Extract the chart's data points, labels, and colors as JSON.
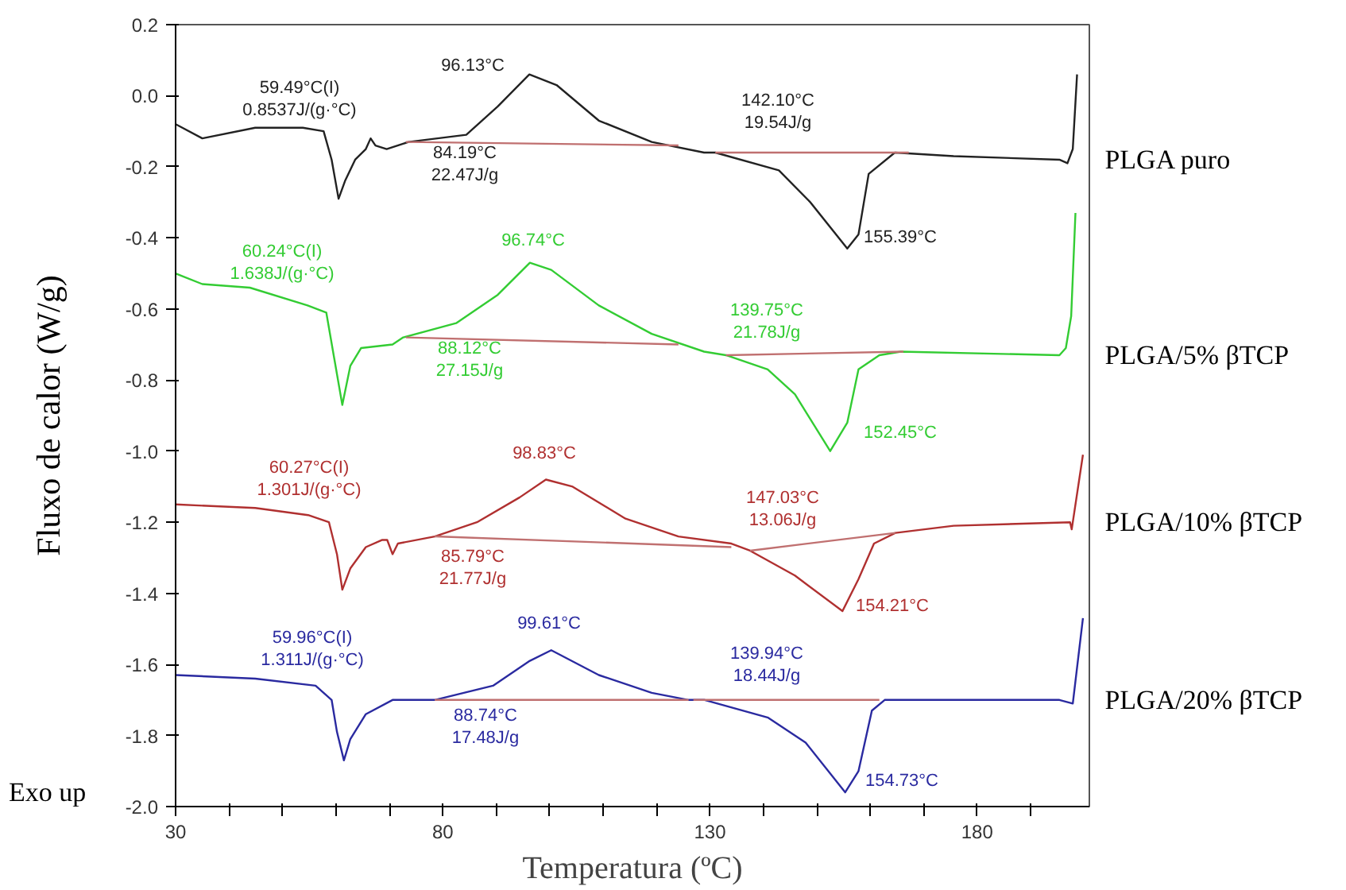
{
  "chart_data": {
    "type": "line",
    "xlabel": "Temperatura (ºC)",
    "ylabel": "Fluxo de calor (W/g)",
    "xlim": [
      30,
      201
    ],
    "ylim": [
      -2.0,
      0.2
    ],
    "xticks": [
      30,
      {
        "value": 40,
        "label": null
      },
      {
        "value": 50,
        "label": null
      },
      {
        "value": 60,
        "label": null
      },
      {
        "value": 70,
        "label": null
      },
      80,
      {
        "value": 90,
        "label": null
      },
      {
        "value": 100,
        "label": null
      },
      {
        "value": 110,
        "label": null
      },
      {
        "value": 120,
        "label": null
      },
      130,
      {
        "value": 140,
        "label": null
      },
      {
        "value": 150,
        "label": null
      },
      {
        "value": 160,
        "label": null
      },
      {
        "value": 170,
        "label": null
      },
      180,
      {
        "value": 190,
        "label": null
      }
    ],
    "yticks": [
      0.2,
      {
        "value": 0,
        "label": "0.0"
      },
      -0.2,
      -0.4,
      -0.6,
      -0.8,
      {
        "value": -1,
        "label": "-1.0"
      },
      -1.2,
      -1.4,
      -1.6,
      -1.8,
      {
        "value": -2,
        "label": "-2.0"
      }
    ],
    "grid": false,
    "series": [
      {
        "name": "PLGA puro",
        "color": "#222222",
        "x": [
          30,
          35,
          44.9,
          53.8,
          57.7,
          59.2,
          60.5,
          61.7,
          63.6,
          65.6,
          66.5,
          67.4,
          69.5,
          73.6,
          84.4,
          90.3,
          96.2,
          101.3,
          109.2,
          119.1,
          128.9,
          131,
          142.9,
          148.8,
          155.7,
          157.8,
          159.7,
          164.6,
          175.6,
          195.4,
          196.9,
          197.9,
          198.7
        ],
        "values": [
          -0.08,
          -0.12,
          -0.09,
          -0.09,
          -0.1,
          -0.18,
          -0.29,
          -0.24,
          -0.18,
          -0.15,
          -0.12,
          -0.14,
          -0.15,
          -0.13,
          -0.11,
          -0.03,
          0.06,
          0.03,
          -0.07,
          -0.13,
          -0.16,
          -0.16,
          -0.21,
          -0.3,
          -0.43,
          -0.39,
          -0.22,
          -0.16,
          -0.17,
          -0.18,
          -0.19,
          -0.15,
          0.06
        ]
      },
      {
        "name": "PLGA/5% βTCP",
        "color": "#33cc33",
        "x": [
          30,
          35,
          43.9,
          54.7,
          58.2,
          59.7,
          61.2,
          62.7,
          64.7,
          70.6,
          72.6,
          82.5,
          90.3,
          96.3,
          100.3,
          109.2,
          119.1,
          128.9,
          133,
          140.8,
          145.9,
          152.5,
          155.7,
          157.8,
          161.7,
          165.7,
          195.4,
          196.6,
          197.6,
          198.4
        ],
        "values": [
          -0.5,
          -0.53,
          -0.54,
          -0.59,
          -0.61,
          -0.74,
          -0.87,
          -0.76,
          -0.71,
          -0.7,
          -0.68,
          -0.64,
          -0.56,
          -0.47,
          -0.49,
          -0.59,
          -0.67,
          -0.72,
          -0.73,
          -0.77,
          -0.84,
          -1.0,
          -0.92,
          -0.77,
          -0.73,
          -0.72,
          -0.73,
          -0.71,
          -0.62,
          -0.33
        ]
      },
      {
        "name": "PLGA/10% βTCP",
        "color": "#b03030",
        "x": [
          30,
          44.9,
          54.8,
          58.7,
          60.2,
          61.2,
          62.7,
          65.6,
          68.6,
          69.6,
          70.6,
          71.6,
          78.5,
          86.4,
          94.4,
          99.3,
          104.3,
          114.2,
          124.1,
          134,
          137.5,
          145.9,
          154.8,
          157.8,
          160.7,
          164.7,
          175.6,
          197.4,
          197.7,
          199.8
        ],
        "values": [
          -1.15,
          -1.16,
          -1.18,
          -1.2,
          -1.29,
          -1.39,
          -1.33,
          -1.27,
          -1.25,
          -1.25,
          -1.29,
          -1.26,
          -1.24,
          -1.2,
          -1.13,
          -1.08,
          -1.1,
          -1.19,
          -1.24,
          -1.26,
          -1.28,
          -1.35,
          -1.45,
          -1.36,
          -1.26,
          -1.23,
          -1.21,
          -1.2,
          -1.22,
          -1.01
        ]
      },
      {
        "name": "PLGA/20% βTCP",
        "color": "#2a2aa0",
        "x": [
          30,
          44.9,
          56.2,
          59.2,
          60.2,
          61.5,
          62.7,
          65.6,
          70.6,
          78.5,
          89.4,
          96.3,
          100.3,
          109.2,
          119.1,
          126,
          129,
          140.9,
          147.9,
          155.3,
          157.8,
          160.3,
          162.7,
          195.4,
          197.9,
          199.8
        ],
        "values": [
          -1.63,
          -1.64,
          -1.66,
          -1.7,
          -1.79,
          -1.87,
          -1.81,
          -1.74,
          -1.7,
          -1.7,
          -1.66,
          -1.59,
          -1.56,
          -1.63,
          -1.68,
          -1.7,
          -1.7,
          -1.75,
          -1.82,
          -1.96,
          -1.9,
          -1.73,
          -1.7,
          -1.7,
          -1.71,
          -1.47
        ]
      },
      {
        "color": "#c07070",
        "x": [
          73.1,
          124.1
        ],
        "values": [
          -0.13,
          -0.14
        ]
      },
      {
        "color": "#c07070",
        "x": [
          131,
          167.2
        ],
        "values": [
          -0.16,
          -0.16
        ]
      },
      {
        "color": "#c07070",
        "x": [
          73.1,
          124.1
        ],
        "values": [
          -0.68,
          -0.7
        ]
      },
      {
        "color": "#c07070",
        "x": [
          133,
          166.2
        ],
        "values": [
          -0.73,
          -0.72
        ]
      },
      {
        "color": "#c07070",
        "x": [
          78.5,
          134
        ],
        "values": [
          -1.24,
          -1.27
        ]
      },
      {
        "color": "#c07070",
        "x": [
          137.5,
          164.7
        ],
        "values": [
          -1.28,
          -1.23
        ]
      },
      {
        "color": "#c07070",
        "x": [
          78.5,
          126
        ],
        "values": [
          -1.7,
          -1.7
        ]
      },
      {
        "color": "#c07070",
        "x": [
          126.9,
          161.7
        ],
        "values": [
          -1.7,
          -1.7
        ]
      }
    ],
    "annotations": [
      "59.49°C(I)\n0.8537J/(g·°C)",
      "96.13°C",
      "84.19°C\n22.47J/g",
      "142.10°C\n19.54J/g",
      "155.39°C",
      "60.24°C(I)\n1.638J/(g·°C)",
      "96.74°C",
      "88.12°C\n27.15J/g",
      "139.75°C\n21.78J/g",
      "152.45°C",
      "60.27°C(I)\n1.301J/(g·°C)",
      "98.83°C",
      "85.79°C\n21.77J/g",
      "147.03°C\n13.06J/g",
      "154.21°C",
      "59.96°C(I)\n1.311J/(g·°C)",
      "99.61°C",
      "88.74°C\n17.48J/g",
      "139.94°C\n18.44J/g",
      "154.73°C",
      "Exo up"
    ]
  }
}
